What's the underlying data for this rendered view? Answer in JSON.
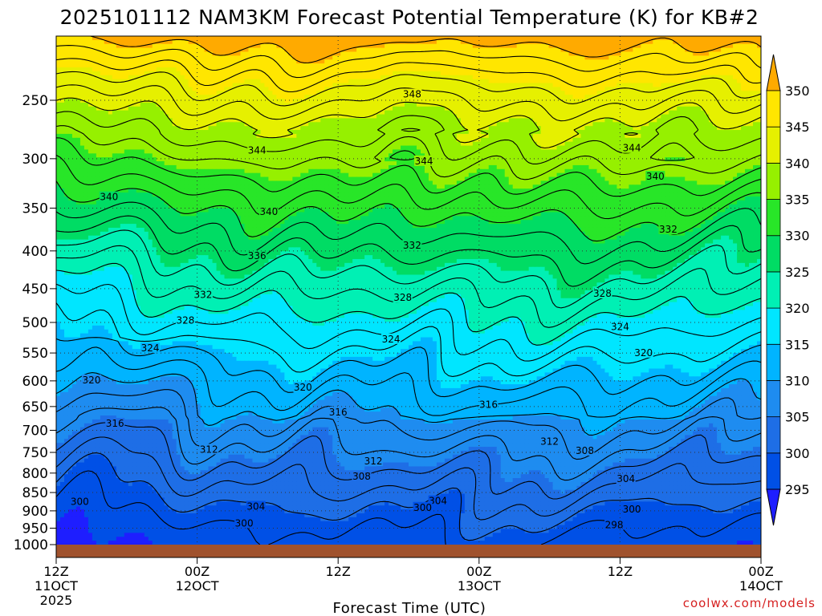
{
  "chart_data": {
    "type": "heatmap",
    "title": "2025101112 NAM3KM Forecast Potential Temperature (K) for KB#2",
    "xlabel": "Forecast Time (UTC)",
    "ylabel": "",
    "credit": "coolwx.com/models",
    "y_scale": "log",
    "y_reversed": true,
    "y_ticks": [
      250,
      300,
      350,
      400,
      450,
      500,
      550,
      600,
      650,
      700,
      750,
      800,
      850,
      900,
      950,
      1000
    ],
    "y_tick_labels": [
      "250",
      "300",
      "350",
      "400",
      "450",
      "500",
      "550",
      "600",
      "650",
      "700",
      "750",
      "800",
      "850",
      "900",
      "950",
      "1000"
    ],
    "x_range_hours": [
      0,
      60
    ],
    "x_ticks": [
      {
        "hour": 0,
        "label1": "12Z",
        "label2": "11OCT",
        "label3": "2025"
      },
      {
        "hour": 12,
        "label1": "00Z",
        "label2": "12OCT",
        "label3": ""
      },
      {
        "hour": 24,
        "label1": "12Z",
        "label2": "",
        "label3": ""
      },
      {
        "hour": 36,
        "label1": "00Z",
        "label2": "13OCT",
        "label3": ""
      },
      {
        "hour": 48,
        "label1": "12Z",
        "label2": "",
        "label3": ""
      },
      {
        "hour": 60,
        "label1": "00Z",
        "label2": "14OCT",
        "label3": ""
      }
    ],
    "grid": true,
    "colorbar": {
      "levels": [
        295,
        300,
        305,
        310,
        315,
        320,
        325,
        330,
        335,
        340,
        345,
        350
      ],
      "labels": [
        "295",
        "300",
        "305",
        "310",
        "315",
        "320",
        "325",
        "330",
        "335",
        "340",
        "345",
        "350"
      ],
      "colors": [
        "#1e1eff",
        "#0050e6",
        "#1e6ee6",
        "#1e8cf0",
        "#00b4ff",
        "#00e6ff",
        "#00f0b4",
        "#00dc64",
        "#28e628",
        "#96f000",
        "#e6f000",
        "#ffe600",
        "#ffd200",
        "#ffaa00"
      ]
    },
    "contour_levels_K": [
      298,
      300,
      302,
      304,
      306,
      308,
      310,
      312,
      314,
      316,
      318,
      320,
      322,
      324,
      326,
      328,
      330,
      332,
      334,
      336,
      338,
      340,
      342,
      344,
      346,
      348,
      350
    ],
    "contour_labels": [
      {
        "text": "348",
        "hour": 30.3,
        "p": 246
      },
      {
        "text": "344",
        "hour": 17.1,
        "p": 293
      },
      {
        "text": "344",
        "hour": 31.3,
        "p": 303
      },
      {
        "text": "344",
        "hour": 49.0,
        "p": 291
      },
      {
        "text": "340",
        "hour": 51.0,
        "p": 318
      },
      {
        "text": "340",
        "hour": 4.5,
        "p": 339
      },
      {
        "text": "340",
        "hour": 18.1,
        "p": 355
      },
      {
        "text": "332",
        "hour": 52.1,
        "p": 375
      },
      {
        "text": "336",
        "hour": 17.1,
        "p": 407
      },
      {
        "text": "332",
        "hour": 30.3,
        "p": 394
      },
      {
        "text": "332",
        "hour": 12.5,
        "p": 460
      },
      {
        "text": "328",
        "hour": 29.5,
        "p": 464
      },
      {
        "text": "328",
        "hour": 46.5,
        "p": 458
      },
      {
        "text": "328",
        "hour": 11.0,
        "p": 498
      },
      {
        "text": "324",
        "hour": 28.5,
        "p": 528
      },
      {
        "text": "324",
        "hour": 48.0,
        "p": 508
      },
      {
        "text": "324",
        "hour": 8.0,
        "p": 543
      },
      {
        "text": "320",
        "hour": 50.0,
        "p": 551
      },
      {
        "text": "320",
        "hour": 3.0,
        "p": 600
      },
      {
        "text": "320",
        "hour": 21.0,
        "p": 614
      },
      {
        "text": "316",
        "hour": 36.8,
        "p": 648
      },
      {
        "text": "316",
        "hour": 24.0,
        "p": 663
      },
      {
        "text": "316",
        "hour": 5.0,
        "p": 687
      },
      {
        "text": "312",
        "hour": 13.0,
        "p": 745
      },
      {
        "text": "312",
        "hour": 42.0,
        "p": 727
      },
      {
        "text": "312",
        "hour": 27.0,
        "p": 773
      },
      {
        "text": "308",
        "hour": 45.0,
        "p": 748
      },
      {
        "text": "308",
        "hour": 26.0,
        "p": 810
      },
      {
        "text": "304",
        "hour": 48.5,
        "p": 817
      },
      {
        "text": "304",
        "hour": 17.0,
        "p": 890
      },
      {
        "text": "304",
        "hour": 32.5,
        "p": 875
      },
      {
        "text": "300",
        "hour": 2.0,
        "p": 877
      },
      {
        "text": "300",
        "hour": 31.2,
        "p": 893
      },
      {
        "text": "300",
        "hour": 49.0,
        "p": 898
      },
      {
        "text": "300",
        "hour": 16.0,
        "p": 938
      },
      {
        "text": "298",
        "hour": 47.5,
        "p": 943
      }
    ]
  }
}
